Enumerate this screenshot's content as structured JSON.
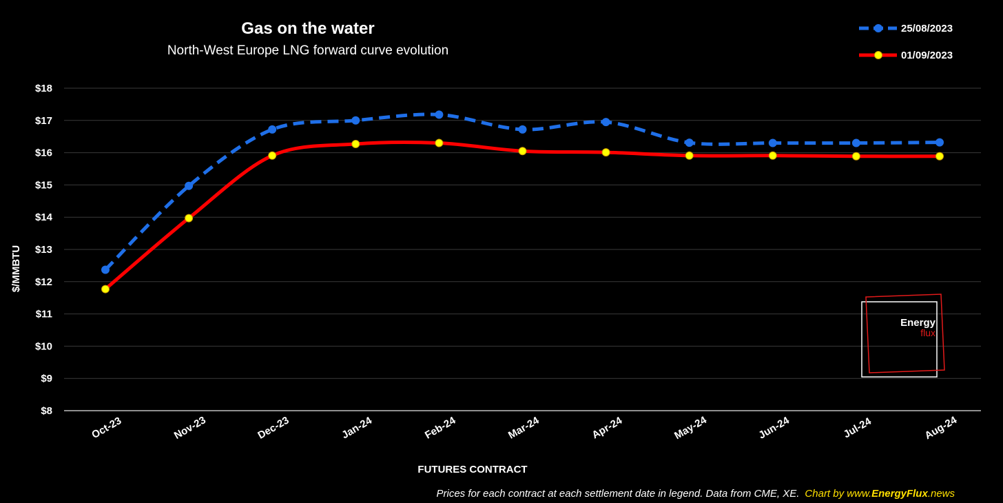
{
  "chart_data": {
    "type": "line",
    "title": "Gas on the water",
    "subtitle": "North-West Europe LNG forward curve evolution",
    "xlabel": "FUTURES CONTRACT",
    "ylabel": "$/MMBTU",
    "ylim": [
      8,
      18
    ],
    "yticks": [
      "$18",
      "$17",
      "$16",
      "$15",
      "$14",
      "$13",
      "$12",
      "$11",
      "$10",
      "$9",
      "$8"
    ],
    "categories": [
      "Oct-23",
      "Nov-23",
      "Dec-23",
      "Jan-24",
      "Feb-24",
      "Mar-24",
      "Apr-24",
      "May-24",
      "Jun-24",
      "Jul-24",
      "Aug-24"
    ],
    "grid": true,
    "legend_position": "top-right",
    "series": [
      {
        "name": "25/08/2023",
        "color": "#1f6fe8",
        "style": "dashed",
        "values": [
          12.37,
          14.97,
          16.72,
          17.0,
          17.18,
          16.72,
          16.95,
          16.31,
          16.3,
          16.3,
          16.32
        ]
      },
      {
        "name": "01/09/2023",
        "color": "#ff0000",
        "marker_color": "#ffff00",
        "style": "solid",
        "values": [
          11.77,
          13.97,
          15.91,
          16.27,
          16.3,
          16.05,
          16.01,
          15.91,
          15.91,
          15.89,
          15.89
        ]
      }
    ]
  },
  "footer": {
    "note": "Prices for each contract at each settlement date in legend. Data from CME, XE.",
    "credit_prefix": "Chart by www.",
    "credit_brand": "EnergyFlux",
    "credit_suffix": ".news"
  },
  "logo": {
    "line1": "Energy",
    "line2": "flux",
    "color_accent": "#e31a1a"
  }
}
